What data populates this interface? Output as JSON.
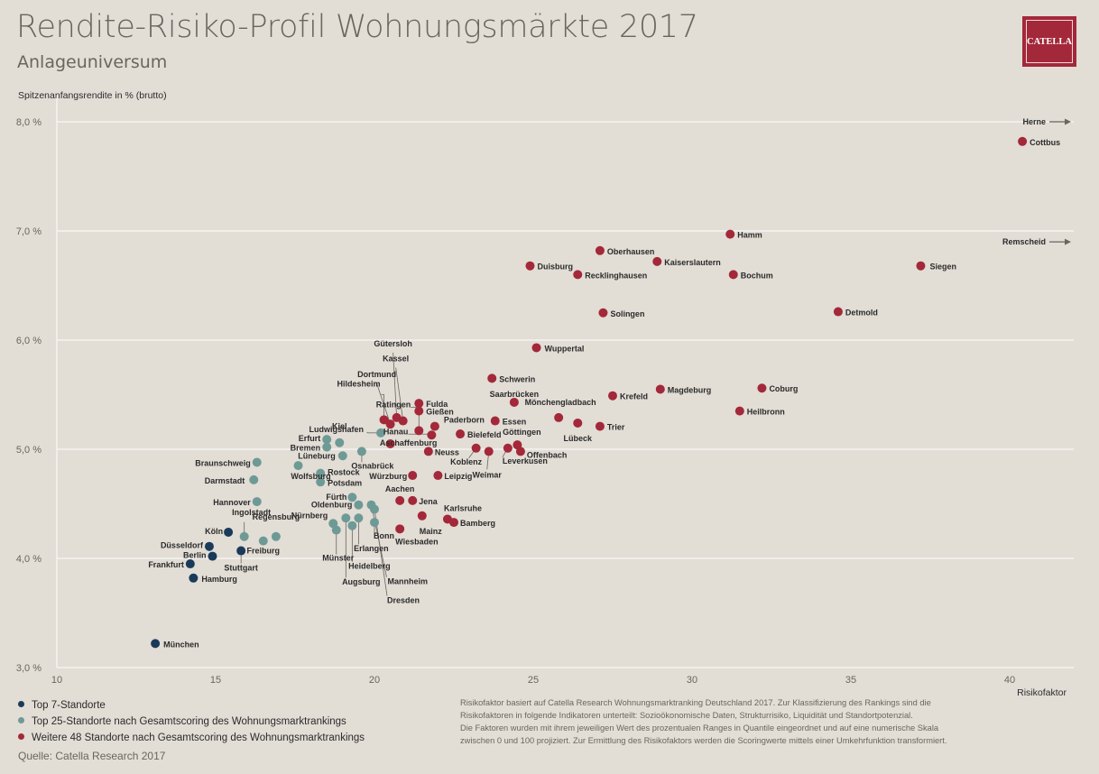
{
  "header": {
    "title": "Rendite-Risiko-Profil Wohnungsmärkte 2017",
    "subtitle": "Anlageuniversum",
    "logo_text": "CATELLA"
  },
  "colors": {
    "background": "#e2ddd5",
    "top7": "#1a3a5a",
    "top25": "#6e9a96",
    "weitere48": "#a3283a",
    "logo": "#a3283a"
  },
  "legend": [
    {
      "label": "Top 7-Standorte",
      "group": "top7"
    },
    {
      "label": "Top 25-Standorte nach Gesamtscoring des Wohnungsmarktrankings",
      "group": "top25"
    },
    {
      "label": "Weitere 48 Standorte nach Gesamtscoring des Wohnungsmarktrankings",
      "group": "weitere48"
    }
  ],
  "source": "Quelle: Catella Research 2017",
  "note": [
    "Risikofaktor basiert auf Catella Research Wohnungsmarktranking Deutschland 2017. Zur Klassifizierung des Rankings sind die",
    "Risikofaktoren in folgende Indikatoren unterteilt: Sozioökonomische Daten, Strukturrisiko, Liquidität und Standortpotenzial.",
    "Die Faktoren wurden mit ihrem jeweiligen Wert des prozentualen Ranges in Quantile eingeordnet und auf eine numerische Skala",
    "zwischen 0 und 100 projiziert. Zur Ermittlung des Risikofaktors werden die Scoringwerte mittels einer Umkehrfunktion transformiert."
  ],
  "chart_data": {
    "type": "scatter",
    "title": "Rendite-Risiko-Profil Wohnungsmärkte 2017",
    "subtitle": "Anlageuniversum",
    "xlabel": "Risikofaktor",
    "ylabel": "Spitzenanfangsrendite in % (brutto)",
    "xlim": [
      10,
      42
    ],
    "ylim": [
      3.0,
      8.2
    ],
    "xticks": [
      10,
      15,
      20,
      25,
      30,
      35,
      40
    ],
    "yticks": [
      3.0,
      4.0,
      5.0,
      6.0,
      7.0,
      8.0
    ],
    "ytick_labels": [
      "3,0 %",
      "4,0 %",
      "5,0 %",
      "6,0 %",
      "7,0 %",
      "8,0 %"
    ],
    "grid": "horizontal",
    "offscale_labels": [
      {
        "label": "Herne",
        "y": 8.0
      },
      {
        "label": "Remscheid",
        "y": 6.9
      }
    ],
    "series": [
      {
        "name": "Top 7-Standorte",
        "group": "top7",
        "points": [
          {
            "label": "München",
            "x": 13.1,
            "y": 3.22
          },
          {
            "label": "Hamburg",
            "x": 14.3,
            "y": 3.82
          },
          {
            "label": "Frankfurt",
            "x": 14.2,
            "y": 3.95
          },
          {
            "label": "Berlin",
            "x": 14.9,
            "y": 4.02
          },
          {
            "label": "Düsseldorf",
            "x": 14.8,
            "y": 4.11
          },
          {
            "label": "Köln",
            "x": 15.4,
            "y": 4.24
          },
          {
            "label": "Stuttgart",
            "x": 15.8,
            "y": 4.07
          }
        ]
      },
      {
        "name": "Top 25-Standorte nach Gesamtscoring des Wohnungsmarktrankings",
        "group": "top25",
        "points": [
          {
            "label": "Ingolstadt",
            "x": 15.9,
            "y": 4.2
          },
          {
            "label": "Freiburg",
            "x": 16.5,
            "y": 4.16
          },
          {
            "label": "Regensburg",
            "x": 16.9,
            "y": 4.2
          },
          {
            "label": "Hannover",
            "x": 16.3,
            "y": 4.52
          },
          {
            "label": "Darmstadt",
            "x": 16.2,
            "y": 4.72
          },
          {
            "label": "Braunschweig",
            "x": 16.3,
            "y": 4.88
          },
          {
            "label": "Wolfsburg",
            "x": 17.6,
            "y": 4.85
          },
          {
            "label": "Rostock",
            "x": 18.3,
            "y": 4.78
          },
          {
            "label": "Potsdam",
            "x": 18.3,
            "y": 4.7
          },
          {
            "label": "Erfurt",
            "x": 18.5,
            "y": 5.09
          },
          {
            "label": "Bremen",
            "x": 18.5,
            "y": 5.02
          },
          {
            "label": "Kiel",
            "x": 18.9,
            "y": 5.06
          },
          {
            "label": "Lüneburg",
            "x": 19.0,
            "y": 4.94
          },
          {
            "label": "Osnabrück",
            "x": 19.6,
            "y": 4.98
          },
          {
            "label": "Nürnberg",
            "x": 18.7,
            "y": 4.32
          },
          {
            "label": "Münster",
            "x": 18.8,
            "y": 4.26
          },
          {
            "label": "Augsburg",
            "x": 19.1,
            "y": 4.37
          },
          {
            "label": "Heidelberg",
            "x": 19.3,
            "y": 4.3
          },
          {
            "label": "Erlangen",
            "x": 19.5,
            "y": 4.37
          },
          {
            "label": "Fürth",
            "x": 19.3,
            "y": 4.56
          },
          {
            "label": "Oldenburg",
            "x": 19.5,
            "y": 4.49
          },
          {
            "label": "Bonn",
            "x": 20.0,
            "y": 4.33
          },
          {
            "label": "Mannheim",
            "x": 19.9,
            "y": 4.49
          },
          {
            "label": "Dresden",
            "x": 20.0,
            "y": 4.45
          },
          {
            "label": "Ludwigshafen",
            "x": 20.2,
            "y": 5.15
          }
        ]
      },
      {
        "name": "Weitere 48 Standorte nach Gesamtscoring des Wohnungsmarktrankings",
        "group": "weitere48",
        "points": [
          {
            "label": "Cottbus",
            "x": 40.4,
            "y": 7.82
          },
          {
            "label": "Hamm",
            "x": 31.2,
            "y": 6.97
          },
          {
            "label": "Oberhausen",
            "x": 27.1,
            "y": 6.82
          },
          {
            "label": "Kaiserslautern",
            "x": 28.9,
            "y": 6.72
          },
          {
            "label": "Duisburg",
            "x": 24.9,
            "y": 6.68
          },
          {
            "label": "Recklinghausen",
            "x": 26.4,
            "y": 6.6
          },
          {
            "label": "Bochum",
            "x": 31.3,
            "y": 6.6
          },
          {
            "label": "Siegen",
            "x": 37.2,
            "y": 6.68
          },
          {
            "label": "Solingen",
            "x": 27.2,
            "y": 6.25
          },
          {
            "label": "Detmold",
            "x": 34.6,
            "y": 6.26
          },
          {
            "label": "Wuppertal",
            "x": 25.1,
            "y": 5.93
          },
          {
            "label": "Schwerin",
            "x": 23.7,
            "y": 5.65
          },
          {
            "label": "Saarbrücken",
            "x": 24.4,
            "y": 5.43
          },
          {
            "label": "Magdeburg",
            "x": 29.0,
            "y": 5.55
          },
          {
            "label": "Coburg",
            "x": 32.2,
            "y": 5.56
          },
          {
            "label": "Krefeld",
            "x": 27.5,
            "y": 5.49
          },
          {
            "label": "Heilbronn",
            "x": 31.5,
            "y": 5.35
          },
          {
            "label": "Mönchengladbach",
            "x": 25.8,
            "y": 5.29
          },
          {
            "label": "Lübeck",
            "x": 26.4,
            "y": 5.24
          },
          {
            "label": "Trier",
            "x": 27.1,
            "y": 5.21
          },
          {
            "label": "Essen",
            "x": 23.8,
            "y": 5.26
          },
          {
            "label": "Göttingen",
            "x": 24.5,
            "y": 5.04
          },
          {
            "label": "Offenbach",
            "x": 24.6,
            "y": 4.98
          },
          {
            "label": "Leverkusen",
            "x": 24.2,
            "y": 5.01
          },
          {
            "label": "Weimar",
            "x": 23.6,
            "y": 4.98
          },
          {
            "label": "Koblenz",
            "x": 23.2,
            "y": 5.01
          },
          {
            "label": "Bielefeld",
            "x": 22.7,
            "y": 5.14
          },
          {
            "label": "Paderborn",
            "x": 21.9,
            "y": 5.21
          },
          {
            "label": "Fulda",
            "x": 21.4,
            "y": 5.42
          },
          {
            "label": "Gießen",
            "x": 21.4,
            "y": 5.35
          },
          {
            "label": "Gütersloh",
            "x": 20.7,
            "y": 5.29
          },
          {
            "label": "Kassel",
            "x": 20.9,
            "y": 5.26
          },
          {
            "label": "Dortmund",
            "x": 20.5,
            "y": 5.23
          },
          {
            "label": "Hildesheim",
            "x": 20.3,
            "y": 5.27
          },
          {
            "label": "Ratingen",
            "x": 21.4,
            "y": 5.17
          },
          {
            "label": "Hanau",
            "x": 21.8,
            "y": 5.13
          },
          {
            "label": "Aschaffenburg",
            "x": 20.5,
            "y": 5.05
          },
          {
            "label": "Neuss",
            "x": 21.7,
            "y": 4.98
          },
          {
            "label": "Würzburg",
            "x": 21.2,
            "y": 4.76
          },
          {
            "label": "Leipzig",
            "x": 22.0,
            "y": 4.76
          },
          {
            "label": "Aachen",
            "x": 20.8,
            "y": 4.53
          },
          {
            "label": "Jena",
            "x": 21.2,
            "y": 4.53
          },
          {
            "label": "Mainz",
            "x": 21.5,
            "y": 4.39
          },
          {
            "label": "Wiesbaden",
            "x": 20.8,
            "y": 4.27
          },
          {
            "label": "Karlsruhe",
            "x": 22.3,
            "y": 4.36
          },
          {
            "label": "Bamberg",
            "x": 22.5,
            "y": 4.33
          }
        ]
      }
    ]
  }
}
